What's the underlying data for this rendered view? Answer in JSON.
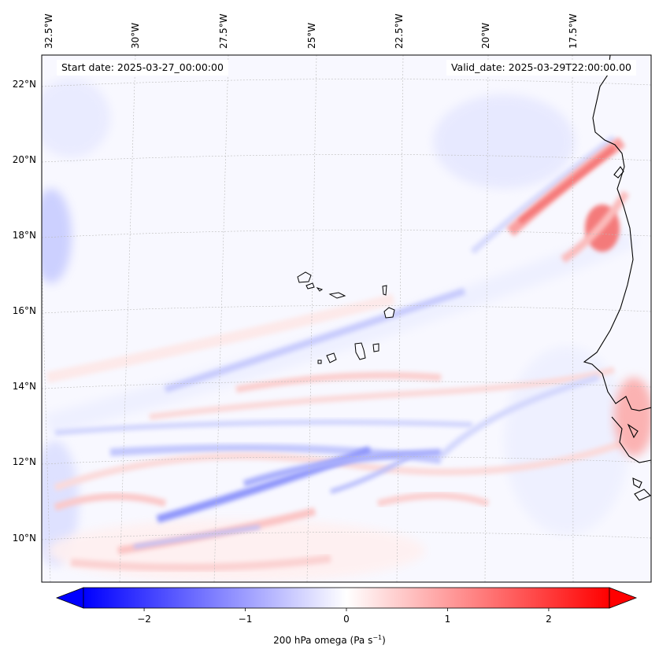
{
  "map": {
    "start_date": "Start date: 2025-03-27_00:00:00",
    "valid_date": "Valid_date: 2025-03-29T22:00:00.00",
    "lon_labels": [
      "32.5°W",
      "30°W",
      "27.5°W",
      "25°W",
      "22.5°W",
      "20°W",
      "17.5°W"
    ],
    "lat_labels": [
      "22°N",
      "20°N",
      "18°N",
      "16°N",
      "14°N",
      "12°N",
      "10°N"
    ],
    "region": "Cape Verde and West African coast"
  },
  "colorbar": {
    "ticks": [
      "−2",
      "−1",
      "0",
      "1",
      "2"
    ],
    "min": -2.6,
    "max": 2.6,
    "label_prefix": "200 hPa omega (Pa s",
    "label_sup": "−1",
    "label_suffix": ")",
    "colors": {
      "negative": "#0000ff",
      "zero": "#ffffff",
      "positive": "#ff0000"
    }
  }
}
